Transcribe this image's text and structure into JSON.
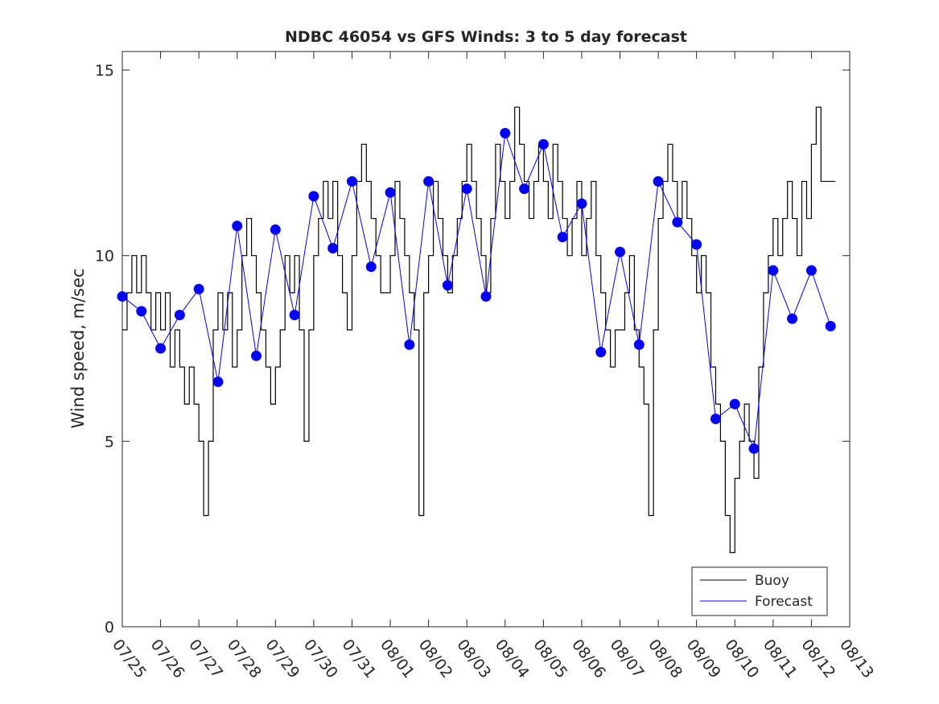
{
  "chart_data": {
    "type": "line",
    "title": "NDBC 46054 vs GFS Winds: 3 to 5 day forecast",
    "xlabel": "",
    "ylabel": "Wind speed, m/sec",
    "ylim": [
      0,
      15.5
    ],
    "xlim": [
      "07/25",
      "08/13"
    ],
    "y_ticks": [
      0,
      5,
      10,
      15
    ],
    "x_ticks": [
      "07/25",
      "07/26",
      "07/27",
      "07/28",
      "07/29",
      "07/30",
      "07/31",
      "08/01",
      "08/02",
      "08/03",
      "08/04",
      "08/05",
      "08/06",
      "08/07",
      "08/08",
      "08/09",
      "08/10",
      "08/11",
      "08/12",
      "08/13"
    ],
    "grid": false,
    "legend_position": "bottom-right",
    "colors": {
      "buoy": "#000000",
      "forecast": "#0000ff",
      "axes": "#262626"
    },
    "series": [
      {
        "name": "Buoy",
        "x": [
          "07/25 00:00",
          "07/25 03:00",
          "07/25 06:00",
          "07/25 09:00",
          "07/25 12:00",
          "07/25 15:00",
          "07/25 18:00",
          "07/25 21:00",
          "07/26 00:00",
          "07/26 03:00",
          "07/26 06:00",
          "07/26 09:00",
          "07/26 12:00",
          "07/26 15:00",
          "07/26 18:00",
          "07/26 21:00",
          "07/27 00:00",
          "07/27 03:00",
          "07/27 06:00",
          "07/27 09:00",
          "07/27 12:00",
          "07/27 15:00",
          "07/27 18:00",
          "07/27 21:00",
          "07/28 00:00",
          "07/28 03:00",
          "07/28 06:00",
          "07/28 09:00",
          "07/28 12:00",
          "07/28 15:00",
          "07/28 18:00",
          "07/28 21:00",
          "07/29 00:00",
          "07/29 03:00",
          "07/29 06:00",
          "07/29 09:00",
          "07/29 12:00",
          "07/29 15:00",
          "07/29 18:00",
          "07/29 21:00",
          "07/30 00:00",
          "07/30 03:00",
          "07/30 06:00",
          "07/30 09:00",
          "07/30 12:00",
          "07/30 15:00",
          "07/30 18:00",
          "07/30 21:00",
          "07/31 00:00",
          "07/31 03:00",
          "07/31 06:00",
          "07/31 09:00",
          "07/31 12:00",
          "07/31 15:00",
          "07/31 18:00",
          "07/31 21:00",
          "08/01 00:00",
          "08/01 03:00",
          "08/01 06:00",
          "08/01 09:00",
          "08/01 12:00",
          "08/01 15:00",
          "08/01 18:00",
          "08/01 21:00",
          "08/02 00:00",
          "08/02 03:00",
          "08/02 06:00",
          "08/02 09:00",
          "08/02 12:00",
          "08/02 15:00",
          "08/02 18:00",
          "08/02 21:00",
          "08/03 00:00",
          "08/03 03:00",
          "08/03 06:00",
          "08/03 09:00",
          "08/03 12:00",
          "08/03 15:00",
          "08/03 18:00",
          "08/03 21:00",
          "08/04 00:00",
          "08/04 03:00",
          "08/04 06:00",
          "08/04 09:00",
          "08/04 12:00",
          "08/04 15:00",
          "08/04 18:00",
          "08/04 21:00",
          "08/05 00:00",
          "08/05 03:00",
          "08/05 06:00",
          "08/05 09:00",
          "08/05 12:00",
          "08/05 15:00",
          "08/05 18:00",
          "08/05 21:00",
          "08/06 00:00",
          "08/06 03:00",
          "08/06 06:00",
          "08/06 09:00",
          "08/06 12:00",
          "08/06 15:00",
          "08/06 18:00",
          "08/06 21:00",
          "08/07 00:00",
          "08/07 03:00",
          "08/07 06:00",
          "08/07 09:00",
          "08/07 12:00",
          "08/07 15:00",
          "08/07 18:00",
          "08/07 21:00",
          "08/08 00:00",
          "08/08 03:00",
          "08/08 06:00",
          "08/08 09:00",
          "08/08 12:00",
          "08/08 15:00",
          "08/08 18:00",
          "08/08 21:00",
          "08/09 00:00",
          "08/09 03:00",
          "08/09 06:00",
          "08/09 09:00",
          "08/09 12:00",
          "08/09 15:00",
          "08/09 18:00",
          "08/09 21:00",
          "08/10 00:00",
          "08/10 03:00",
          "08/10 06:00",
          "08/10 09:00",
          "08/10 12:00",
          "08/10 15:00",
          "08/10 18:00",
          "08/10 21:00",
          "08/11 00:00",
          "08/11 03:00",
          "08/11 06:00",
          "08/11 09:00",
          "08/11 12:00",
          "08/11 15:00",
          "08/11 18:00",
          "08/11 21:00",
          "08/12 00:00",
          "08/12 03:00",
          "08/12 06:00",
          "08/12 09:00",
          "08/12 12:00"
        ],
        "values": [
          8,
          9,
          10,
          9,
          10,
          9,
          8,
          9,
          8,
          9,
          7,
          8,
          7,
          6,
          7,
          6,
          5,
          3,
          5,
          8,
          9,
          8,
          9,
          7,
          8,
          10,
          11,
          10,
          9,
          8,
          7,
          6,
          7,
          8,
          10,
          9,
          10,
          8,
          5,
          8,
          10,
          11,
          12,
          11,
          12,
          10,
          9,
          8,
          10,
          12,
          13,
          12,
          11,
          10,
          9,
          9,
          10,
          12,
          11,
          10,
          9,
          8,
          3,
          9,
          10,
          12,
          11,
          10,
          9,
          10,
          11,
          12,
          13,
          12,
          11,
          10,
          9,
          11,
          13,
          12,
          11,
          12,
          14,
          13,
          12,
          11,
          12,
          13,
          12,
          11,
          13,
          12,
          11,
          10,
          11,
          12,
          10,
          11,
          12,
          10,
          9,
          8,
          7,
          8,
          8,
          9,
          10,
          8,
          7,
          6,
          3,
          8,
          11,
          12,
          13,
          12,
          11,
          12,
          11,
          10,
          9,
          10,
          9,
          7,
          6,
          5,
          3,
          2,
          4,
          5,
          6,
          5,
          4,
          7,
          9,
          10,
          11,
          10,
          11,
          12,
          11,
          10,
          12,
          11,
          13,
          14,
          12,
          12,
          12
        ],
        "color": "#000000"
      },
      {
        "name": "Forecast",
        "x": [
          "07/25 00:00",
          "07/25 12:00",
          "07/26 00:00",
          "07/26 12:00",
          "07/27 00:00",
          "07/27 12:00",
          "07/28 00:00",
          "07/28 12:00",
          "07/29 00:00",
          "07/29 12:00",
          "07/30 00:00",
          "07/30 12:00",
          "07/31 00:00",
          "07/31 12:00",
          "08/01 00:00",
          "08/01 12:00",
          "08/02 00:00",
          "08/02 12:00",
          "08/03 00:00",
          "08/03 12:00",
          "08/04 00:00",
          "08/04 12:00",
          "08/05 00:00",
          "08/05 12:00",
          "08/06 00:00",
          "08/06 12:00",
          "08/07 00:00",
          "08/07 12:00",
          "08/08 00:00",
          "08/08 12:00",
          "08/09 00:00",
          "08/09 12:00",
          "08/10 00:00",
          "08/10 12:00",
          "08/11 00:00",
          "08/11 12:00",
          "08/12 00:00",
          "08/12 12:00"
        ],
        "values": [
          8.9,
          8.5,
          7.5,
          8.4,
          9.1,
          6.6,
          10.8,
          7.3,
          10.7,
          8.4,
          11.6,
          10.2,
          12.0,
          9.7,
          11.7,
          7.6,
          12.0,
          9.2,
          11.8,
          8.9,
          13.3,
          11.8,
          13.0,
          10.5,
          11.4,
          7.4,
          10.1,
          7.6,
          12.0,
          10.9,
          10.3,
          5.6,
          6.0,
          4.8,
          9.6,
          8.3,
          9.6,
          8.1
        ],
        "color": "#0000ff"
      }
    ]
  }
}
